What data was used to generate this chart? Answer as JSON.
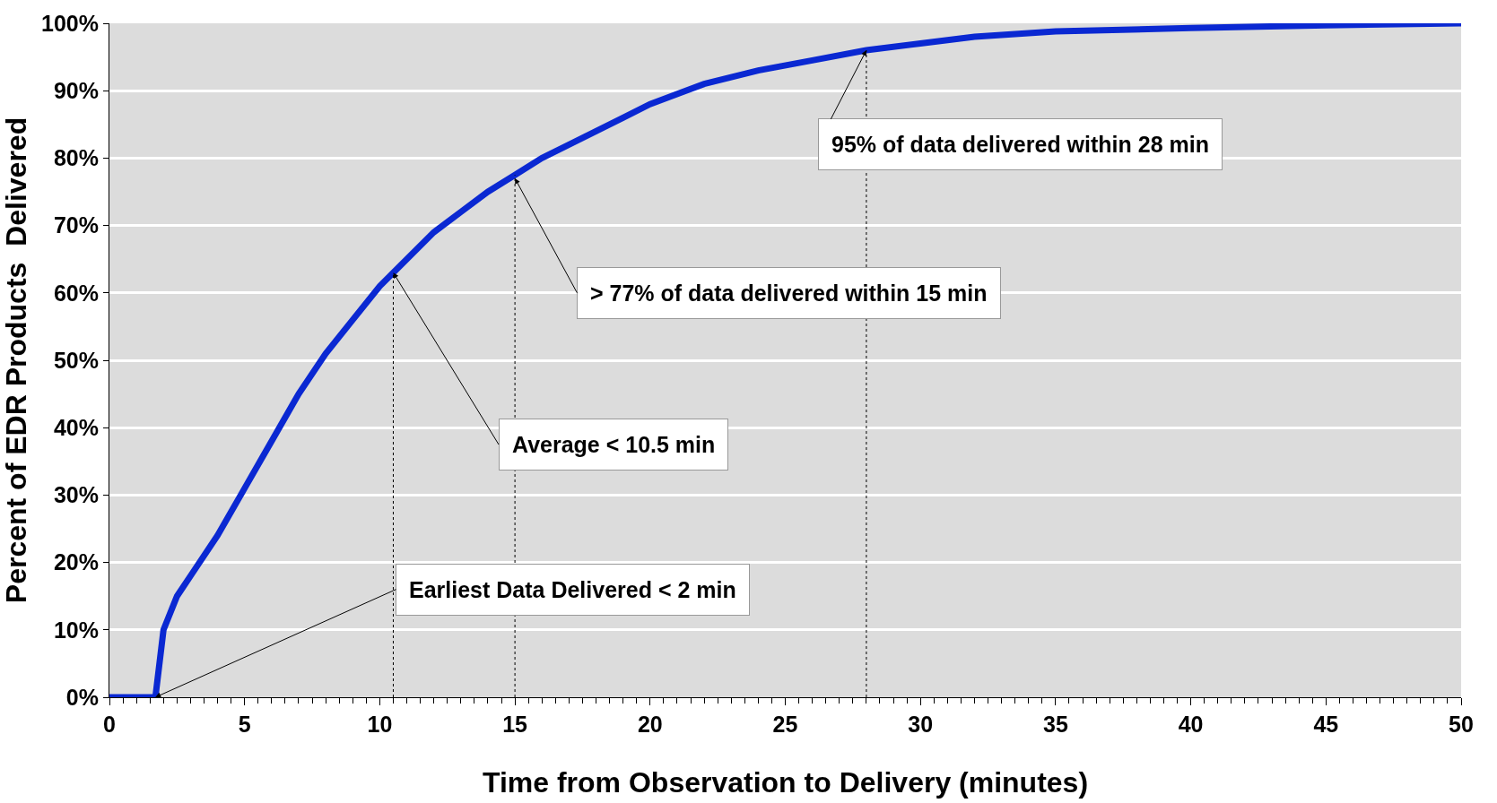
{
  "chart_data": {
    "type": "line",
    "xlabel": "Time from Observation to Delivery (minutes)",
    "ylabel": "Percent of EDR Products  Delivered",
    "x": [
      0,
      1.3,
      1.7,
      2,
      2.5,
      3,
      4,
      5,
      6,
      7,
      8,
      9,
      10,
      10.5,
      12,
      13,
      14,
      15,
      16,
      17,
      18,
      19,
      20,
      22,
      24,
      26,
      28,
      30,
      32,
      35,
      40,
      45,
      50
    ],
    "series": [
      {
        "color": "#0a28d2",
        "values": [
          0,
          0,
          0,
          10,
          15,
          18,
          24,
          31,
          38,
          45,
          51,
          56,
          61,
          63,
          69,
          72,
          75,
          77.5,
          80,
          82,
          84,
          86,
          88,
          91,
          93,
          94.5,
          96,
          97,
          98,
          98.8,
          99.3,
          99.7,
          100
        ]
      }
    ],
    "xlim": [
      0,
      50
    ],
    "xticks": [
      0,
      5,
      10,
      15,
      20,
      25,
      30,
      35,
      40,
      45,
      50
    ],
    "ylim": [
      0,
      100
    ],
    "yticks": [
      {
        "value": 0,
        "label": "0%"
      },
      {
        "value": 10,
        "label": "10%"
      },
      {
        "value": 20,
        "label": "20%"
      },
      {
        "value": 30,
        "label": "30%"
      },
      {
        "value": 40,
        "label": "40%"
      },
      {
        "value": 50,
        "label": "50%"
      },
      {
        "value": 60,
        "label": "60%"
      },
      {
        "value": 70,
        "label": "70%"
      },
      {
        "value": 80,
        "label": "80%"
      },
      {
        "value": 90,
        "label": "90%"
      },
      {
        "value": 100,
        "label": "100%"
      }
    ],
    "grid": "y",
    "marker": "none",
    "line_style": "solid",
    "ref_lines": [
      {
        "axis": "x",
        "value": 10.5,
        "line_style": "dotted",
        "color": "#000000"
      },
      {
        "axis": "x",
        "value": 15,
        "line_style": "dotted",
        "color": "#000000"
      },
      {
        "axis": "x",
        "value": 28,
        "line_style": "dotted",
        "color": "#000000"
      }
    ],
    "annotations": [
      {
        "text": "Earliest Data Delivered < 2 min",
        "x": 1.7,
        "y": 0
      },
      {
        "text": "Average < 10.5 min",
        "x": 10.5,
        "y": 63
      },
      {
        "text": "> 77% of data delivered within 15 min",
        "x": 15,
        "y": 77
      },
      {
        "text": "95% of data delivered within 28 min",
        "x": 28,
        "y": 96
      }
    ]
  }
}
